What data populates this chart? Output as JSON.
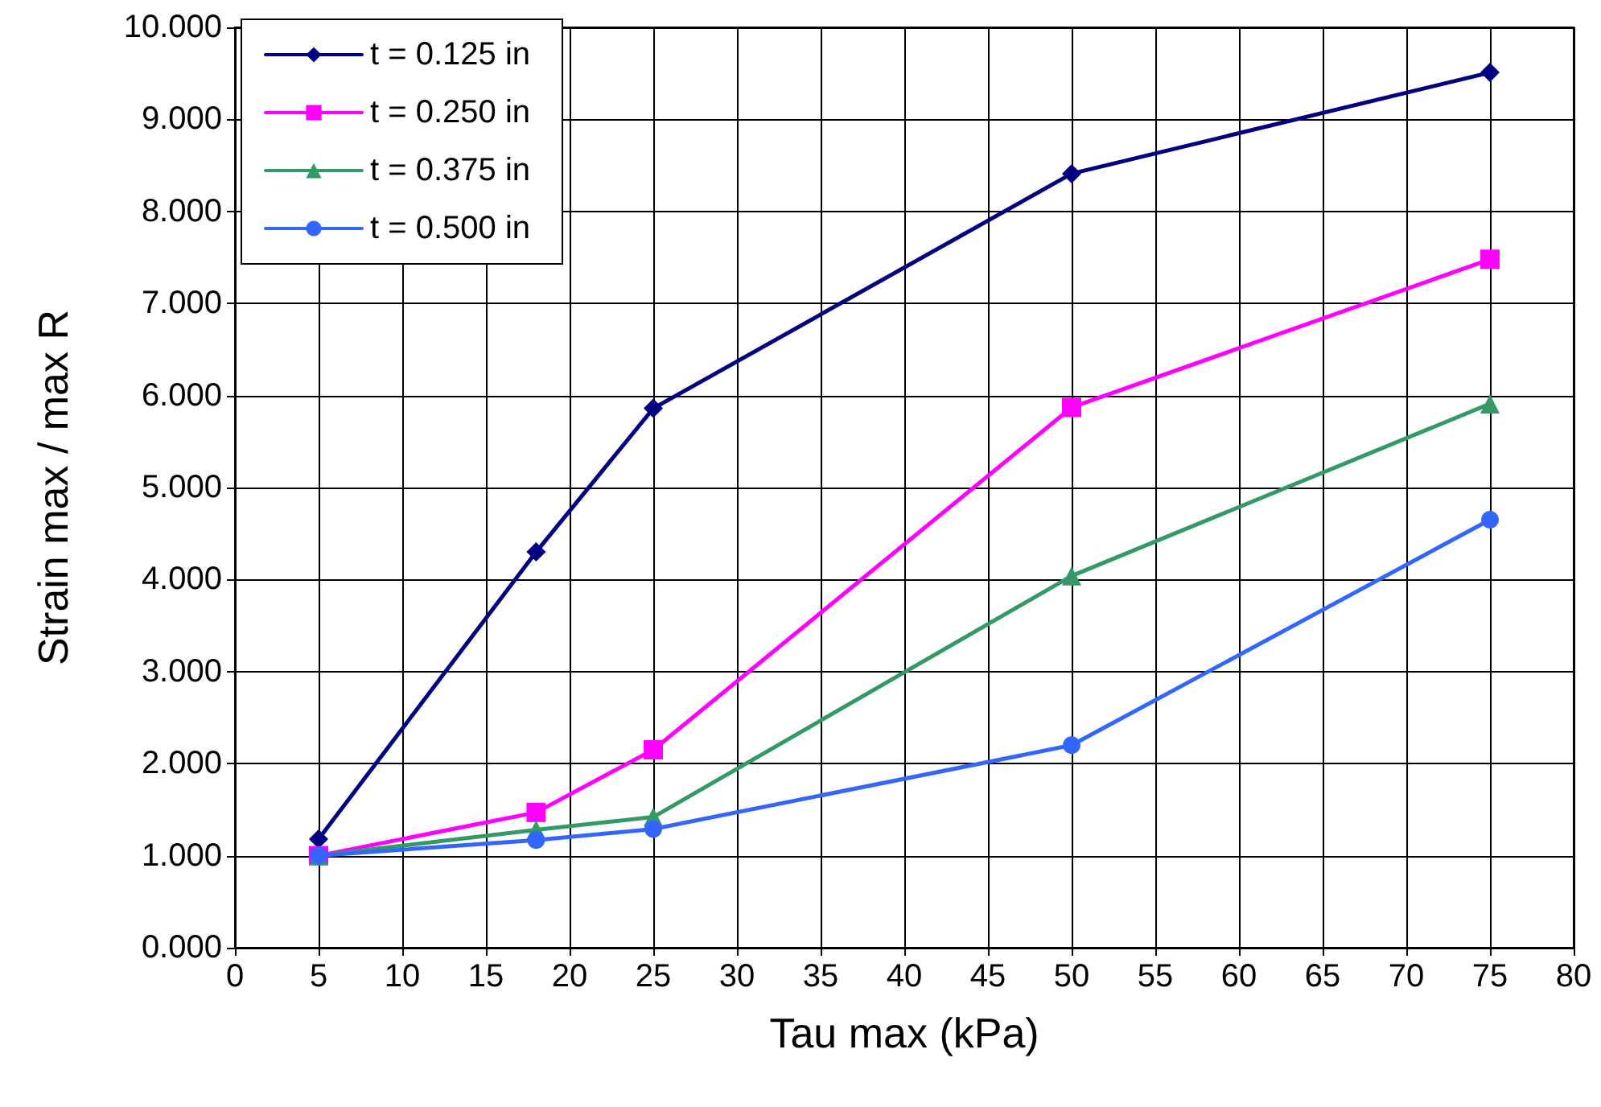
{
  "chart_data": {
    "type": "line",
    "xlabel": "Tau max (kPa)",
    "ylabel": "Strain max / max R",
    "xlim": [
      0,
      80
    ],
    "xticks": [
      0,
      5,
      10,
      15,
      20,
      25,
      30,
      35,
      40,
      45,
      50,
      55,
      60,
      65,
      70,
      75,
      80
    ],
    "ylim": [
      0,
      10
    ],
    "yticks": [
      {
        "value": 0,
        "label": "0.000"
      },
      {
        "value": 1,
        "label": "1.000"
      },
      {
        "value": 2,
        "label": "2.000"
      },
      {
        "value": 3,
        "label": "3.000"
      },
      {
        "value": 4,
        "label": "4.000"
      },
      {
        "value": 5,
        "label": "5.000"
      },
      {
        "value": 6,
        "label": "6.000"
      },
      {
        "value": 7,
        "label": "7.000"
      },
      {
        "value": 8,
        "label": "8.000"
      },
      {
        "value": 9,
        "label": "9.000"
      },
      {
        "value": 10,
        "label": "10.000"
      }
    ],
    "grid": true,
    "legend": "top left",
    "line_style": "solid",
    "x": [
      5,
      18,
      25,
      50,
      75
    ],
    "series": [
      {
        "name": "t = 0.125 in",
        "color": "#000080",
        "marker": "diamond",
        "values": [
          1.18,
          4.3,
          5.86,
          8.41,
          9.51
        ]
      },
      {
        "name": "t = 0.250 in",
        "color": "#ff00ff",
        "marker": "square",
        "values": [
          1.0,
          1.47,
          2.15,
          5.87,
          7.48
        ]
      },
      {
        "name": "t = 0.375 in",
        "color": "#339966",
        "marker": "triangle",
        "values": [
          1.0,
          1.28,
          1.42,
          4.04,
          5.91
        ]
      },
      {
        "name": "t = 0.500 in",
        "color": "#3366ff",
        "marker": "circle",
        "values": [
          1.0,
          1.17,
          1.29,
          2.2,
          4.65
        ]
      }
    ]
  }
}
